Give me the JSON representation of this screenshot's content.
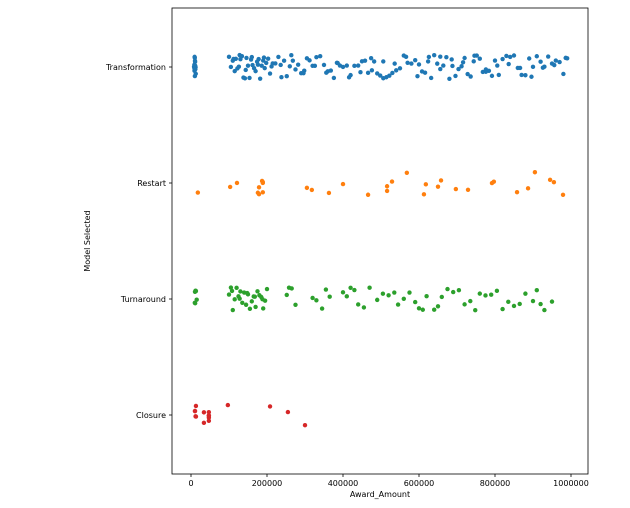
{
  "chart_data": {
    "type": "scatter",
    "subtype": "strip",
    "title": "",
    "xlabel": "Award_Amount",
    "ylabel": "Model Selected",
    "xlim": [
      -50000,
      1040000
    ],
    "xticks": [
      0,
      200000,
      400000,
      600000,
      800000,
      1000000
    ],
    "xtick_labels": [
      "0",
      "200000",
      "400000",
      "600000",
      "800000",
      "1000000"
    ],
    "grid": false,
    "categories": [
      "Transformation",
      "Restart",
      "Turnaround",
      "Closure"
    ],
    "series": [
      {
        "name": "Transformation",
        "color": "#1f77b4",
        "values": [
          8000,
          9000,
          10000,
          10500,
          11000,
          12000,
          9500,
          10200,
          11500,
          8800,
          10800,
          12500,
          9200,
          100000,
          105000,
          110000,
          115000,
          118000,
          122000,
          126000,
          130000,
          134000,
          138000,
          142000,
          146000,
          150000,
          154000,
          158000,
          162000,
          166000,
          170000,
          174000,
          178000,
          182000,
          186000,
          190000,
          194000,
          198000,
          203000,
          208000,
          215000,
          222000,
          230000,
          238000,
          245000,
          252000,
          260000,
          268000,
          275000,
          282000,
          290000,
          298000,
          305000,
          312000,
          320000,
          330000,
          340000,
          350000,
          360000,
          368000,
          376000,
          384000,
          392000,
          400000,
          410000,
          420000,
          430000,
          440000,
          450000,
          458000,
          466000,
          474000,
          482000,
          490000,
          498000,
          506000,
          514000,
          522000,
          530000,
          540000,
          550000,
          560000,
          570000,
          580000,
          590000,
          600000,
          608000,
          616000,
          624000,
          632000,
          640000,
          648000,
          656000,
          664000,
          672000,
          680000,
          688000,
          696000,
          704000,
          712000,
          720000,
          728000,
          736000,
          744000,
          752000,
          760000,
          768000,
          776000,
          784000,
          792000,
          800000,
          810000,
          820000,
          830000,
          840000,
          850000,
          860000,
          870000,
          880000,
          890000,
          900000,
          910000,
          920000,
          930000,
          940000,
          950000,
          960000,
          970000,
          980000,
          990000,
          112000,
          128000,
          144000,
          160000,
          176000,
          192000,
          212000,
          236000,
          264000,
          296000,
          326000,
          356000,
          386000,
          416000,
          446000,
          476000,
          506000,
          536000,
          566000,
          596000,
          626000,
          656000,
          686000,
          716000,
          746000,
          776000,
          806000,
          836000,
          866000,
          896000,
          926000,
          956000,
          986000
        ]
      },
      {
        "name": "Restart",
        "color": "#ff7f0e",
        "values": [
          18000,
          103000,
          121000,
          176000,
          179000,
          189000,
          179000,
          189000,
          187000,
          189000,
          305000,
          318000,
          363000,
          400000,
          466000,
          516000,
          516000,
          529000,
          568000,
          613000,
          618000,
          650000,
          658000,
          697000,
          729000,
          792000,
          797000,
          858000,
          887000,
          905000,
          945000,
          955000,
          979000
        ]
      },
      {
        "name": "Turnaround",
        "color": "#2ca02c",
        "values": [
          10000,
          12000,
          11000,
          13000,
          10500,
          15000,
          100000,
          105000,
          110000,
          115000,
          120000,
          125000,
          130000,
          135000,
          140000,
          145000,
          150000,
          155000,
          160000,
          165000,
          170000,
          175000,
          180000,
          185000,
          190000,
          195000,
          200000,
          108000,
          128000,
          148000,
          168000,
          188000,
          252000,
          258000,
          265000,
          275000,
          320000,
          330000,
          345000,
          355000,
          365000,
          400000,
          410000,
          420000,
          430000,
          440000,
          455000,
          470000,
          490000,
          505000,
          520000,
          535000,
          545000,
          560000,
          575000,
          590000,
          600000,
          610000,
          620000,
          640000,
          650000,
          660000,
          675000,
          690000,
          705000,
          720000,
          735000,
          748000,
          760000,
          775000,
          790000,
          805000,
          820000,
          835000,
          850000,
          865000,
          880000,
          900000,
          910000,
          920000,
          930000,
          950000
        ]
      },
      {
        "name": "Closure",
        "color": "#d62728",
        "values": [
          10500,
          10500,
          12000,
          13000,
          13000,
          34000,
          34000,
          47000,
          47000,
          47000,
          47000,
          47000,
          97000,
          208000,
          255000,
          300000
        ]
      }
    ]
  }
}
